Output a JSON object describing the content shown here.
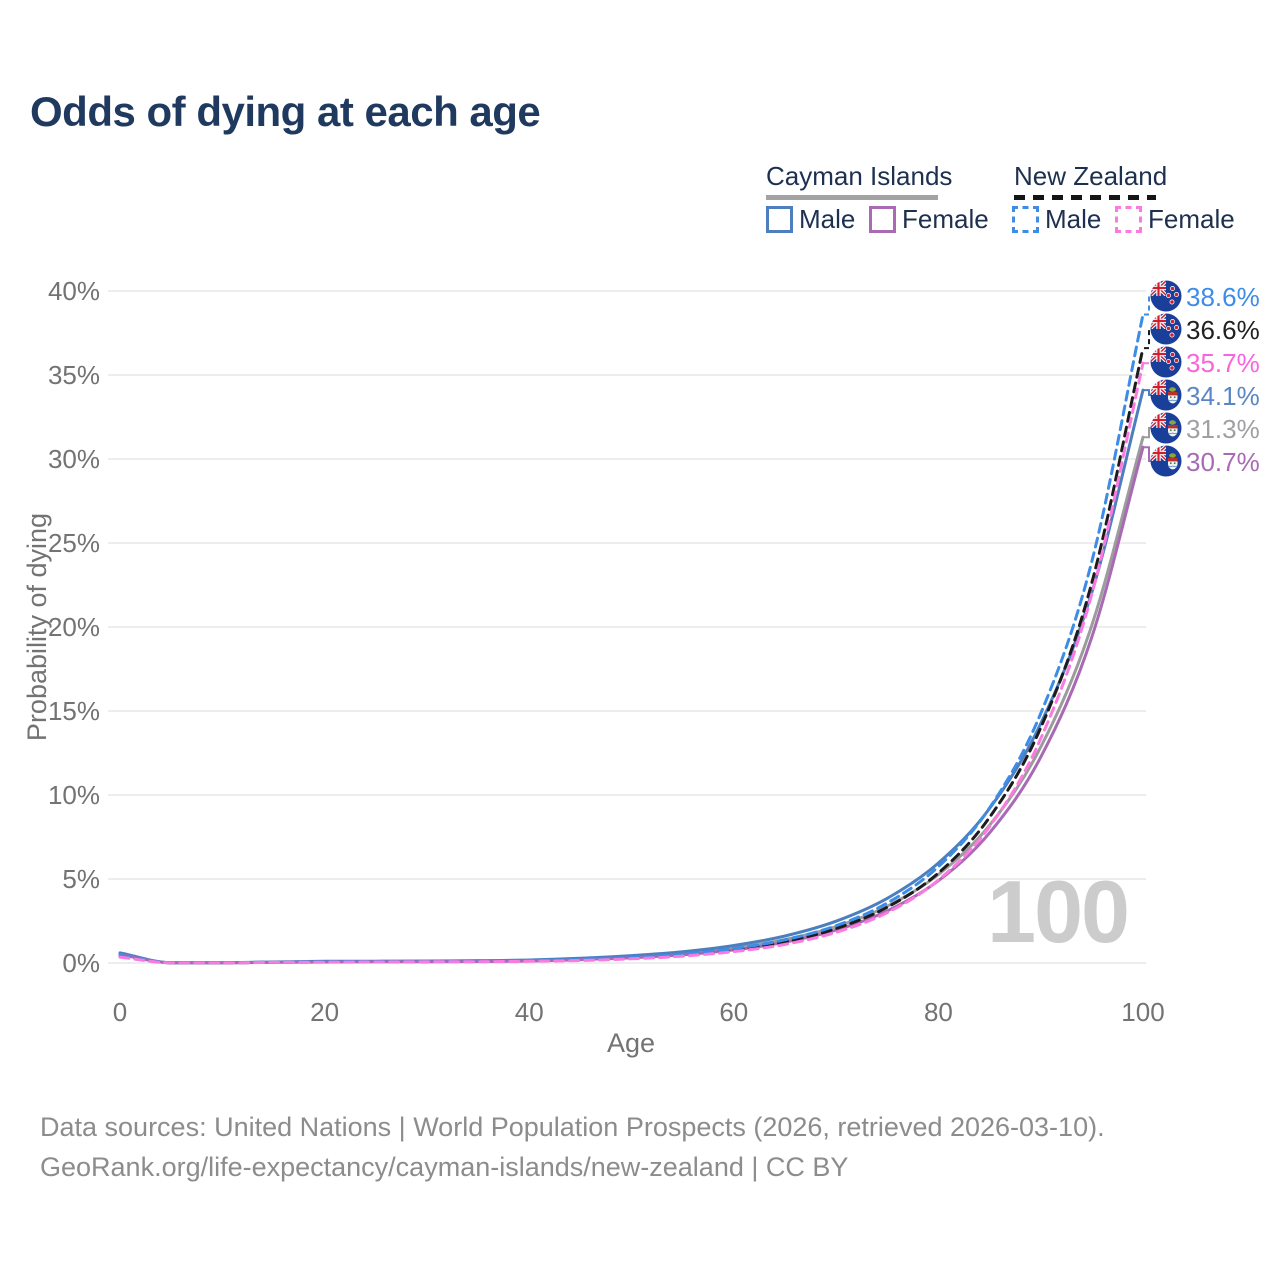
{
  "title": "Odds of dying at each age",
  "legend": {
    "groups": [
      {
        "label": "Cayman Islands",
        "underline_style": "solid",
        "underline_color": "#a3a3a3",
        "items": [
          {
            "label": "Male",
            "color": "#4d7fbe",
            "style": "solid"
          },
          {
            "label": "Female",
            "color": "#a86ab4",
            "style": "solid"
          }
        ]
      },
      {
        "label": "New Zealand",
        "underline_style": "dashed",
        "underline_color": "#151515",
        "items": [
          {
            "label": "Male",
            "color": "#3c8ce8",
            "style": "dashed"
          },
          {
            "label": "Female",
            "color": "#fb7ae0",
            "style": "dashed"
          }
        ]
      }
    ]
  },
  "chart_data": {
    "type": "line",
    "title": "Odds of dying at each age",
    "xlabel": "Age",
    "ylabel": "Probability of dying",
    "xlim": [
      0,
      100
    ],
    "ylim_pct": [
      0,
      40
    ],
    "x_ticks": [
      0,
      20,
      40,
      60,
      80,
      100
    ],
    "y_ticks_pct": [
      0,
      5,
      10,
      15,
      20,
      25,
      30,
      35,
      40
    ],
    "grid": true,
    "annotation": {
      "text": "100"
    },
    "ages": [
      0,
      5,
      10,
      15,
      20,
      25,
      30,
      35,
      40,
      45,
      50,
      55,
      60,
      65,
      70,
      75,
      80,
      85,
      90,
      95,
      100
    ],
    "series": [
      {
        "id": "cayman-total",
        "name": "Cayman Islands · Both sexes",
        "color": "#9c9c9c",
        "dash": false,
        "values_pct": [
          0.55,
          0.02,
          0.02,
          0.05,
          0.08,
          0.09,
          0.1,
          0.11,
          0.15,
          0.23,
          0.37,
          0.57,
          0.89,
          1.39,
          2.16,
          3.38,
          5.27,
          8.2,
          12.85,
          20.1,
          31.3
        ]
      },
      {
        "id": "cayman-male",
        "name": "Cayman Islands · Male",
        "color": "#4d7fbe",
        "dash": false,
        "values_pct": [
          0.6,
          0.02,
          0.02,
          0.06,
          0.1,
          0.11,
          0.12,
          0.14,
          0.18,
          0.28,
          0.44,
          0.67,
          1.04,
          1.61,
          2.49,
          3.85,
          5.95,
          9.2,
          14.25,
          22.05,
          34.1
        ]
      },
      {
        "id": "cayman-female",
        "name": "Cayman Islands · Female",
        "color": "#a86ab4",
        "dash": false,
        "values_pct": [
          0.5,
          0.015,
          0.015,
          0.04,
          0.06,
          0.07,
          0.08,
          0.09,
          0.12,
          0.2,
          0.31,
          0.49,
          0.78,
          1.24,
          1.96,
          3.1,
          4.9,
          7.75,
          12.25,
          19.4,
          30.7
        ]
      },
      {
        "id": "nz-total",
        "name": "New Zealand · Both sexes",
        "color": "#1c1c1c",
        "dash": true,
        "values_pct": [
          0.4,
          0.015,
          0.015,
          0.04,
          0.06,
          0.075,
          0.085,
          0.1,
          0.12,
          0.18,
          0.29,
          0.47,
          0.78,
          1.27,
          2.05,
          3.32,
          5.36,
          8.67,
          14.0,
          22.63,
          36.6
        ]
      },
      {
        "id": "nz-male",
        "name": "New Zealand · Male",
        "color": "#3c8ce8",
        "dash": true,
        "values_pct": [
          0.45,
          0.02,
          0.02,
          0.05,
          0.08,
          0.09,
          0.1,
          0.12,
          0.14,
          0.21,
          0.33,
          0.53,
          0.86,
          1.38,
          2.22,
          3.57,
          5.74,
          9.23,
          14.85,
          23.9,
          38.6
        ]
      },
      {
        "id": "nz-female",
        "name": "New Zealand · Female",
        "color": "#fb7ae0",
        "dash": true,
        "values_pct": [
          0.35,
          0.012,
          0.012,
          0.035,
          0.05,
          0.06,
          0.07,
          0.08,
          0.1,
          0.15,
          0.25,
          0.41,
          0.68,
          1.11,
          1.83,
          3.0,
          4.94,
          8.12,
          13.35,
          21.95,
          35.7
        ]
      }
    ],
    "end_labels": [
      {
        "text": "38.6%",
        "series": "nz-male",
        "flag": "new-zealand",
        "color": "#3c8ce8"
      },
      {
        "text": "36.6%",
        "series": "nz-total",
        "flag": "new-zealand",
        "color": "#212121"
      },
      {
        "text": "35.7%",
        "series": "nz-female",
        "flag": "new-zealand",
        "color": "#fb63dd"
      },
      {
        "text": "34.1%",
        "series": "cayman-male",
        "flag": "cayman-islands",
        "color": "#5b85c6"
      },
      {
        "text": "31.3%",
        "series": "cayman-total",
        "flag": "cayman-islands",
        "color": "#9fa0a4"
      },
      {
        "text": "30.7%",
        "series": "cayman-female",
        "flag": "cayman-islands",
        "color": "#a86ab4"
      }
    ],
    "legend_position": "top-right"
  },
  "colors": {
    "title": "#1f3a5e",
    "legend_text": "#1e3050",
    "axis_text": "#737373",
    "grid": "#e7e7e7",
    "watermark": "#cccccc",
    "footer_text": "#8c8c8c",
    "flag_blue": "#1a3f9a",
    "flag_red": "#cf1f2f"
  },
  "footer": {
    "line1": "Data sources: United Nations | World Population Prospects (2026, retrieved 2026-03-10).",
    "line2": "GeoRank.org/life-expectancy/cayman-islands/new-zealand | CC BY"
  }
}
